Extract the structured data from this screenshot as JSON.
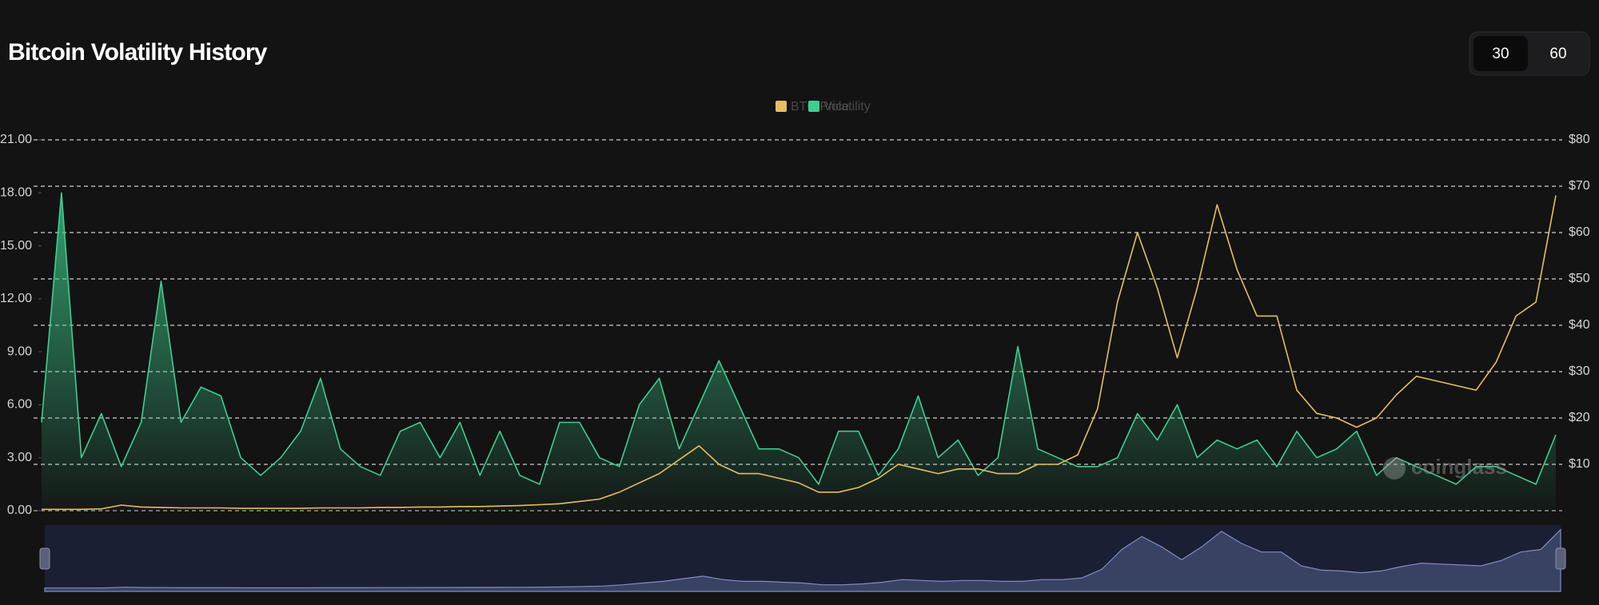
{
  "chart_data": {
    "type": "line",
    "title": "Bitcoin Volatility History",
    "period_buttons": [
      "30",
      "60"
    ],
    "selected_period": "30",
    "watermark": "coinglass",
    "legend_position": "top",
    "grid": true,
    "categories": [
      null,
      null,
      null,
      null,
      null,
      null,
      null,
      null,
      null,
      null,
      null,
      null,
      null,
      null,
      null,
      null,
      null,
      null,
      null,
      null,
      null,
      null,
      null,
      null,
      null,
      null,
      null,
      null,
      null,
      null,
      null,
      null,
      null,
      null,
      null,
      null,
      null,
      null,
      null,
      null,
      null,
      null,
      null,
      null,
      null,
      null,
      null,
      null,
      null,
      null,
      null,
      null,
      null,
      null,
      null,
      null,
      null,
      null,
      null,
      null,
      null,
      null,
      null,
      null,
      null,
      null,
      null,
      null,
      null,
      null,
      null,
      null,
      null,
      null,
      null,
      null,
      null
    ],
    "ylim": [
      0,
      21
    ],
    "yticks": [
      {
        "value": 0,
        "label": "0.00"
      },
      {
        "value": 3,
        "label": "3.00"
      },
      {
        "value": 6,
        "label": "6.00"
      },
      {
        "value": 9,
        "label": "9.00"
      },
      {
        "value": 12,
        "label": "12.00"
      },
      {
        "value": 15,
        "label": "15.00"
      },
      {
        "value": 18,
        "label": "18.00"
      },
      {
        "value": 21,
        "label": "21.00"
      }
    ],
    "y2lim": [
      0,
      80
    ],
    "y2ticks": [
      {
        "value": 10,
        "label": "$10"
      },
      {
        "value": 20,
        "label": "$20"
      },
      {
        "value": 30,
        "label": "$30"
      },
      {
        "value": 40,
        "label": "$40"
      },
      {
        "value": 50,
        "label": "$50"
      },
      {
        "value": 60,
        "label": "$60"
      },
      {
        "value": 70,
        "label": "$70"
      },
      {
        "value": 80,
        "label": "$80"
      }
    ],
    "series": [
      {
        "name": "BTC Price",
        "color": "#e8bd5e",
        "axis": "y2",
        "values": [
          0.3,
          0.3,
          0.3,
          0.4,
          1.2,
          0.8,
          0.7,
          0.6,
          0.6,
          0.6,
          0.5,
          0.5,
          0.5,
          0.5,
          0.6,
          0.6,
          0.6,
          0.7,
          0.7,
          0.8,
          0.8,
          0.9,
          0.9,
          1,
          1.1,
          1.3,
          1.5,
          2,
          2.5,
          4,
          6,
          8,
          11,
          14,
          10,
          8,
          8,
          7,
          6,
          4,
          4,
          5,
          7,
          10,
          9,
          8,
          9,
          9,
          8,
          8,
          10,
          10,
          12,
          22,
          45,
          60,
          48,
          33,
          48,
          66,
          52,
          42,
          42,
          26,
          21,
          20,
          18,
          20,
          25,
          29,
          28,
          27,
          26,
          32,
          42,
          45,
          68
        ]
      },
      {
        "name": "Volatility",
        "color": "#3ecf8e",
        "axis": "y",
        "values": [
          5,
          18,
          3,
          5.5,
          2.5,
          5,
          13,
          5,
          7,
          6.5,
          3,
          2,
          3,
          4.5,
          7.5,
          3.5,
          2.5,
          2,
          4.5,
          5,
          3,
          5,
          2,
          4.5,
          2,
          1.5,
          5,
          5,
          3,
          2.5,
          6,
          7.5,
          3.5,
          6,
          8.5,
          6,
          3.5,
          3.5,
          3,
          1.5,
          4.5,
          4.5,
          2,
          3.5,
          6.5,
          3,
          4,
          2,
          3,
          9.3,
          3.5,
          3,
          2.5,
          2.5,
          3,
          5.5,
          4,
          6,
          3,
          4,
          3.5,
          4,
          2.5,
          4.5,
          3,
          3.5,
          4.5,
          2,
          3,
          2.5,
          2,
          1.5,
          2.5,
          2.5,
          2,
          1.5,
          4.3
        ]
      }
    ]
  }
}
